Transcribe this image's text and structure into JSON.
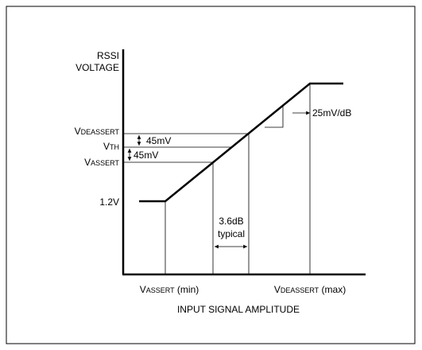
{
  "y_axis": {
    "line1": "RSSI",
    "line2": "VOLTAGE"
  },
  "levels": {
    "deassert": {
      "main": "V",
      "sub": "DEASSERT"
    },
    "threshold": {
      "main": "V",
      "sub": "TH"
    },
    "assert": {
      "main": "V",
      "sub": "ASSERT"
    },
    "base": "1.2V"
  },
  "annotations": {
    "hysteresis_upper": "45mV",
    "hysteresis_lower": "45mV",
    "slope": "25mV/dB",
    "gap_line1": "3.6dB",
    "gap_line2": "typical"
  },
  "x_axis": {
    "assert_min": {
      "main": "V",
      "sub": "ASSERT",
      "suffix": " (min)"
    },
    "deassert_max": {
      "main": "V",
      "sub": "DEASSERT",
      "suffix": " (max)"
    },
    "title": "INPUT SIGNAL AMPLITUDE"
  }
}
